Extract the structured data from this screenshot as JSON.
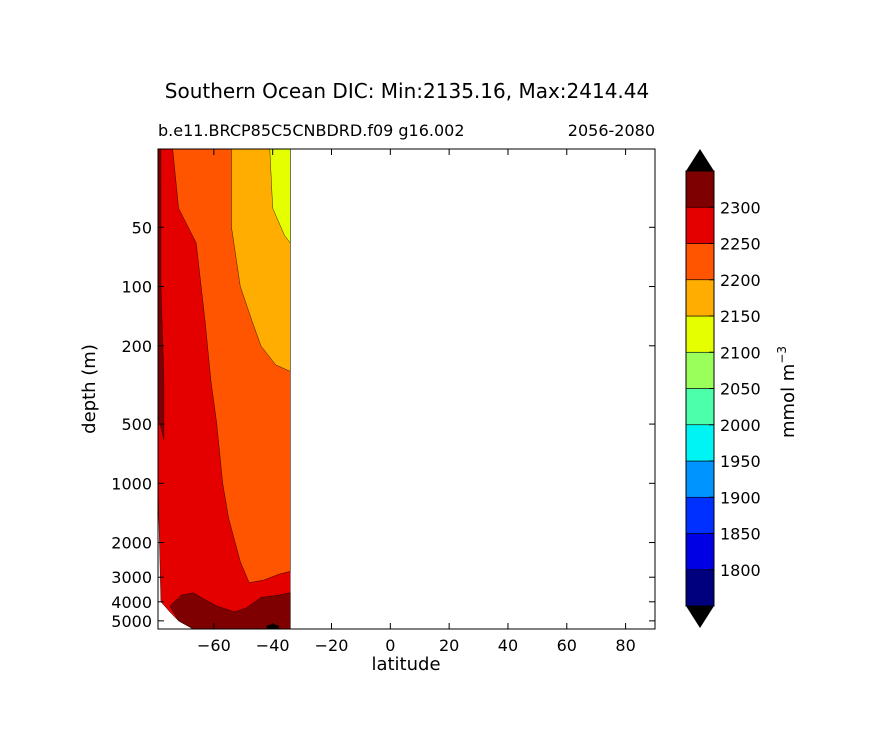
{
  "chart_data": {
    "type": "contourf",
    "title": "Southern Ocean DIC: Min:2135.16, Max:2414.44",
    "subtitle_left": "b.e11.BRCP85C5CNBDRD.f09 g16.002",
    "subtitle_right": "2056-2080",
    "xlabel": "latitude",
    "ylabel": "depth (m)",
    "xlim": [
      -79,
      90
    ],
    "ylim": [
      5500,
      20
    ],
    "yscale": "log",
    "xticks": [
      -60,
      -40,
      -20,
      0,
      20,
      40,
      60,
      80
    ],
    "xtick_labels": [
      "−60",
      "−40",
      "−20",
      "0",
      "20",
      "40",
      "60",
      "80"
    ],
    "yticks": [
      50,
      100,
      200,
      500,
      1000,
      2000,
      3000,
      4000,
      5000
    ],
    "ytick_labels": [
      "50",
      "100",
      "200",
      "500",
      "1000",
      "2000",
      "3000",
      "4000",
      "5000"
    ],
    "colorbar": {
      "label_base": "mmol m",
      "label_exp": "−3",
      "extend": "both",
      "levels": [
        1750,
        1800,
        1850,
        1900,
        1950,
        2000,
        2050,
        2100,
        2150,
        2200,
        2250,
        2300,
        2350
      ],
      "tick_labels": [
        "1800",
        "1850",
        "1900",
        "1950",
        "2000",
        "2050",
        "2100",
        "2150",
        "2200",
        "2250",
        "2300"
      ],
      "colors": [
        "#00007f",
        "#0000e5",
        "#0030ff",
        "#0094ff",
        "#00f4f4",
        "#4cffaa",
        "#9bff5b",
        "#e5ff00",
        "#ffad00",
        "#ff5500",
        "#e50000",
        "#7f0000"
      ],
      "under_color": "#000000",
      "over_color": "#000000"
    },
    "bands": [
      {
        "level": "2250-2300",
        "color": "#e50000",
        "outline": [
          [
            -79,
            20
          ],
          [
            -79,
            1000
          ],
          [
            -78,
            4000
          ],
          [
            -75,
            4500
          ],
          [
            -72,
            5000
          ],
          [
            -67,
            5500
          ],
          [
            -34,
            5500
          ],
          [
            -34,
            20
          ]
        ]
      },
      {
        "level": "2200-2250",
        "color": "#ff5500",
        "outline": [
          [
            -74,
            20
          ],
          [
            -72,
            40
          ],
          [
            -66,
            60
          ],
          [
            -63,
            150
          ],
          [
            -61,
            300
          ],
          [
            -59,
            500
          ],
          [
            -57,
            1000
          ],
          [
            -55,
            1500
          ],
          [
            -51,
            2500
          ],
          [
            -48,
            3200
          ],
          [
            -43,
            3100
          ],
          [
            -38,
            2900
          ],
          [
            -34,
            2800
          ],
          [
            -34,
            20
          ]
        ]
      },
      {
        "level": "2150-2200",
        "color": "#ffad00",
        "outline": [
          [
            -54,
            20
          ],
          [
            -54,
            50
          ],
          [
            -51,
            100
          ],
          [
            -47,
            150
          ],
          [
            -44,
            200
          ],
          [
            -39,
            250
          ],
          [
            -34,
            270
          ],
          [
            -34,
            20
          ]
        ]
      },
      {
        "level": "2100-2150",
        "color": "#e5ff00",
        "outline": [
          [
            -41,
            20
          ],
          [
            -40,
            40
          ],
          [
            -36,
            55
          ],
          [
            -34,
            60
          ],
          [
            -34,
            20
          ]
        ]
      },
      {
        "level": "2300-2350",
        "color": "#7f0000",
        "outline": [
          [
            -79,
            20
          ],
          [
            -79,
            450
          ],
          [
            -77,
            600
          ],
          [
            -77,
            300
          ],
          [
            -78,
            100
          ],
          [
            -78,
            20
          ]
        ]
      },
      {
        "level": "2300-2350",
        "color": "#7f0000",
        "outline": [
          [
            -75,
            4200
          ],
          [
            -71,
            3700
          ],
          [
            -67,
            3600
          ],
          [
            -63,
            3900
          ],
          [
            -59,
            4200
          ],
          [
            -53,
            4500
          ],
          [
            -49,
            4300
          ],
          [
            -44,
            3800
          ],
          [
            -38,
            3700
          ],
          [
            -34,
            3600
          ],
          [
            -34,
            5500
          ],
          [
            -67,
            5500
          ],
          [
            -72,
            5000
          ]
        ]
      },
      {
        "level": "over-max",
        "color": "#000000",
        "outline": [
          [
            -42,
            5300
          ],
          [
            -40,
            5200
          ],
          [
            -38,
            5300
          ],
          [
            -38,
            5500
          ],
          [
            -42,
            5500
          ]
        ]
      }
    ]
  }
}
